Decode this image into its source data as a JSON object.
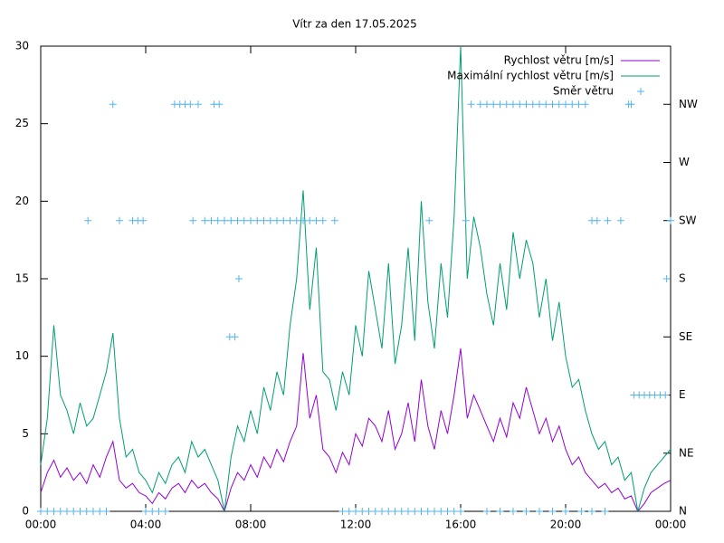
{
  "chart_data": {
    "type": "line",
    "title": "Vítr za den 17.05.2025",
    "xlim": [
      0,
      24
    ],
    "xticks": [
      {
        "value": 0,
        "label": "00:00"
      },
      {
        "value": 4,
        "label": "04:00"
      },
      {
        "value": 8,
        "label": "08:00"
      },
      {
        "value": 12,
        "label": "12:00"
      },
      {
        "value": 16,
        "label": "16:00"
      },
      {
        "value": 20,
        "label": "20:00"
      },
      {
        "value": 24,
        "label": "00:00"
      }
    ],
    "ylim": [
      0,
      30
    ],
    "yticks": [
      0,
      5,
      10,
      15,
      20,
      25,
      30
    ],
    "y2lim": [
      0,
      360
    ],
    "y2ticks": [
      {
        "value": 0,
        "label": "N"
      },
      {
        "value": 45,
        "label": "NE"
      },
      {
        "value": 90,
        "label": "E"
      },
      {
        "value": 135,
        "label": "SE"
      },
      {
        "value": 180,
        "label": "S"
      },
      {
        "value": 225,
        "label": "SW"
      },
      {
        "value": 270,
        "label": "W"
      },
      {
        "value": 315,
        "label": "NW"
      }
    ],
    "legend": "top right",
    "x": [
      0,
      0.25,
      0.5,
      0.75,
      1,
      1.25,
      1.5,
      1.75,
      2,
      2.25,
      2.5,
      2.75,
      3,
      3.25,
      3.5,
      3.75,
      4,
      4.25,
      4.5,
      4.75,
      5,
      5.25,
      5.5,
      5.75,
      6,
      6.25,
      6.5,
      6.75,
      7,
      7.25,
      7.5,
      7.75,
      8,
      8.25,
      8.5,
      8.75,
      9,
      9.25,
      9.5,
      9.75,
      10,
      10.25,
      10.5,
      10.75,
      11,
      11.25,
      11.5,
      11.75,
      12,
      12.25,
      12.5,
      12.75,
      13,
      13.25,
      13.5,
      13.75,
      14,
      14.25,
      14.5,
      14.75,
      15,
      15.25,
      15.5,
      15.75,
      16,
      16.25,
      16.5,
      16.75,
      17,
      17.25,
      17.5,
      17.75,
      18,
      18.25,
      18.5,
      18.75,
      19,
      19.25,
      19.5,
      19.75,
      20,
      20.25,
      20.5,
      20.75,
      21,
      21.25,
      21.5,
      21.75,
      22,
      22.25,
      22.5,
      22.75,
      23,
      23.25,
      23.5,
      23.75,
      24
    ],
    "series": [
      {
        "name": "Rychlost větru [m/s]",
        "type": "line",
        "color": "#9400d3",
        "values": [
          1.2,
          2.5,
          3.3,
          2.2,
          2.8,
          2.0,
          2.5,
          1.8,
          3.0,
          2.2,
          3.5,
          4.5,
          2.0,
          1.5,
          1.8,
          1.2,
          1.0,
          0.5,
          1.2,
          0.8,
          1.5,
          1.8,
          1.2,
          2.0,
          1.5,
          1.8,
          1.2,
          0.8,
          0.0,
          1.5,
          2.5,
          2.0,
          3.0,
          2.2,
          3.5,
          2.8,
          4.0,
          3.2,
          4.5,
          5.5,
          10.2,
          6.0,
          7.5,
          4.0,
          3.5,
          2.5,
          3.8,
          3.0,
          5.0,
          4.2,
          6.0,
          5.5,
          4.5,
          6.5,
          4.0,
          5.0,
          7.0,
          4.5,
          8.5,
          5.5,
          4.0,
          6.5,
          5.0,
          7.5,
          10.5,
          6.0,
          7.5,
          6.5,
          5.5,
          4.5,
          6.0,
          4.8,
          7.0,
          6.0,
          8.0,
          6.5,
          5.0,
          6.0,
          4.5,
          5.5,
          4.0,
          3.0,
          3.5,
          2.5,
          2.0,
          1.5,
          1.8,
          1.2,
          1.5,
          0.8,
          1.0,
          0.0,
          0.5,
          1.2,
          1.5,
          1.8,
          2.0
        ]
      },
      {
        "name": "Maximální rychlost větru [m/s]",
        "type": "line",
        "color": "#009e73",
        "values": [
          3.0,
          6.0,
          12.0,
          7.5,
          6.5,
          5.0,
          7.0,
          5.5,
          6.0,
          7.5,
          9.0,
          11.5,
          6.0,
          3.5,
          4.0,
          2.5,
          2.0,
          1.2,
          2.5,
          1.8,
          3.0,
          3.5,
          2.5,
          4.5,
          3.5,
          4.0,
          3.0,
          2.0,
          0.0,
          3.5,
          5.5,
          4.5,
          6.5,
          5.0,
          8.0,
          6.5,
          9.0,
          7.5,
          12.0,
          15.0,
          20.7,
          13.0,
          17.0,
          9.0,
          8.5,
          6.5,
          9.0,
          7.5,
          12.0,
          10.0,
          15.5,
          13.0,
          10.5,
          16.0,
          9.5,
          12.0,
          17.0,
          11.0,
          20.0,
          13.5,
          10.5,
          16.0,
          12.5,
          19.0,
          30.0,
          15.0,
          19.0,
          17.0,
          14.0,
          12.0,
          16.0,
          13.0,
          18.0,
          15.0,
          17.5,
          16.0,
          12.5,
          15.0,
          11.0,
          13.5,
          10.0,
          8.0,
          8.5,
          6.5,
          5.0,
          4.0,
          4.5,
          3.0,
          3.5,
          2.0,
          2.5,
          0.0,
          1.5,
          2.5,
          3.0,
          3.5,
          4.0
        ]
      },
      {
        "name": "Směr větru",
        "type": "scatter",
        "color": "#56b4e9",
        "axis": "y2",
        "x": [
          0,
          0.25,
          0.5,
          0.75,
          1,
          1.25,
          1.5,
          1.75,
          2,
          2.25,
          2.5,
          1.8,
          2.75,
          3.0,
          3.5,
          3.7,
          3.9,
          4.0,
          4.25,
          4.5,
          4.75,
          5.1,
          5.3,
          5.5,
          5.7,
          5.8,
          6.0,
          6.25,
          6.5,
          6.6,
          6.8,
          6.75,
          7.0,
          7.25,
          7.5,
          7.75,
          8,
          8.25,
          8.5,
          8.75,
          9,
          9.25,
          9.5,
          9.75,
          10,
          10.25,
          10.5,
          10.75,
          11.2,
          7.2,
          7.4,
          7.55,
          11.5,
          11.75,
          12,
          12.25,
          12.5,
          12.75,
          13,
          13.25,
          13.5,
          13.75,
          14,
          14.25,
          14.5,
          14.75,
          15,
          15.25,
          15.5,
          15.75,
          16,
          14.8,
          16.2,
          16.4,
          16.75,
          17,
          17.25,
          17.5,
          17.75,
          18,
          18.25,
          18.5,
          18.75,
          19,
          19.25,
          19.5,
          19.75,
          20,
          20.25,
          20.5,
          20.75,
          17,
          17.5,
          18,
          18.5,
          19,
          19.5,
          20,
          20.6,
          21.0,
          21.5,
          21.0,
          21.2,
          21.6,
          22.1,
          22.4,
          22.5,
          22.6,
          22.8,
          23,
          23.2,
          23.4,
          23.6,
          23.8,
          23.85,
          24
        ],
        "values": [
          0,
          0,
          0,
          0,
          0,
          0,
          0,
          0,
          0,
          0,
          0,
          225,
          315,
          225,
          225,
          225,
          225,
          0,
          0,
          0,
          0,
          315,
          315,
          315,
          315,
          225,
          315,
          225,
          225,
          315,
          315,
          225,
          225,
          225,
          225,
          225,
          225,
          225,
          225,
          225,
          225,
          225,
          225,
          225,
          225,
          225,
          225,
          225,
          225,
          135,
          135,
          180,
          0,
          0,
          0,
          0,
          0,
          0,
          0,
          0,
          0,
          0,
          0,
          0,
          0,
          0,
          0,
          0,
          0,
          0,
          0,
          225,
          225,
          315,
          315,
          315,
          315,
          315,
          315,
          315,
          315,
          315,
          315,
          315,
          315,
          315,
          315,
          315,
          315,
          315,
          315,
          0,
          0,
          0,
          0,
          0,
          0,
          0,
          0,
          0,
          0,
          225,
          225,
          225,
          225,
          315,
          315,
          90,
          90,
          90,
          90,
          90,
          90,
          90,
          180,
          225
        ]
      }
    ]
  }
}
